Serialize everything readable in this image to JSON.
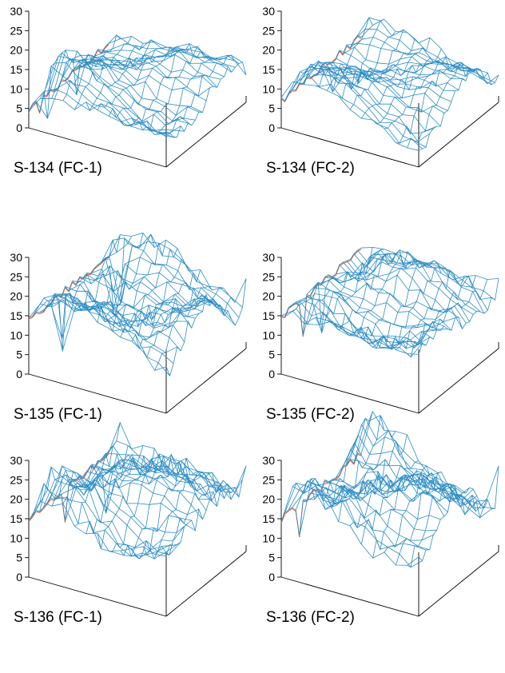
{
  "figure": {
    "colors": {
      "surface_top": "#2b8cc4",
      "surface_bottom": "#ee5522",
      "axes": "#000000"
    }
  },
  "chart_data": [
    {
      "type": "surface3d",
      "label": "S-134 (FC-1)",
      "zlim": [
        0,
        30
      ],
      "zticks": [
        0,
        5,
        10,
        15,
        20,
        25,
        30
      ],
      "base": 9,
      "amplitude": 4.5,
      "low_dips": 4,
      "edge_left": 5,
      "edge_right": 7
    },
    {
      "type": "surface3d",
      "label": "S-134 (FC-2)",
      "zlim": [
        0,
        30
      ],
      "zticks": [
        0,
        5,
        10,
        15,
        20,
        25,
        30
      ],
      "base": 9,
      "amplitude": 4.5,
      "low_dips": 3,
      "edge_left": 7,
      "edge_right": 7
    },
    {
      "type": "surface3d",
      "label": "S-135 (FC-1)",
      "zlim": [
        0,
        30
      ],
      "zticks": [
        0,
        5,
        10,
        15,
        20,
        25,
        30
      ],
      "base": 15,
      "amplitude": 6,
      "low_dips": 5,
      "edge_left": 14,
      "edge_right": 18
    },
    {
      "type": "surface3d",
      "label": "S-135 (FC-2)",
      "zlim": [
        0,
        30
      ],
      "zticks": [
        0,
        5,
        10,
        15,
        20,
        25,
        30
      ],
      "base": 15,
      "amplitude": 6,
      "low_dips": 2,
      "edge_left": 15,
      "edge_right": 18
    },
    {
      "type": "surface3d",
      "label": "S-136 (FC-1)",
      "zlim": [
        0,
        30
      ],
      "zticks": [
        0,
        5,
        10,
        15,
        20,
        25,
        30
      ],
      "base": 18,
      "amplitude": 7,
      "low_dips": 2,
      "edge_left": 15,
      "edge_right": 22
    },
    {
      "type": "surface3d",
      "label": "S-136 (FC-2)",
      "zlim": [
        0,
        30
      ],
      "zticks": [
        0,
        5,
        10,
        15,
        20,
        25,
        30
      ],
      "base": 18,
      "amplitude": 7,
      "low_dips": 1,
      "edge_left": 15,
      "edge_right": 22
    }
  ]
}
